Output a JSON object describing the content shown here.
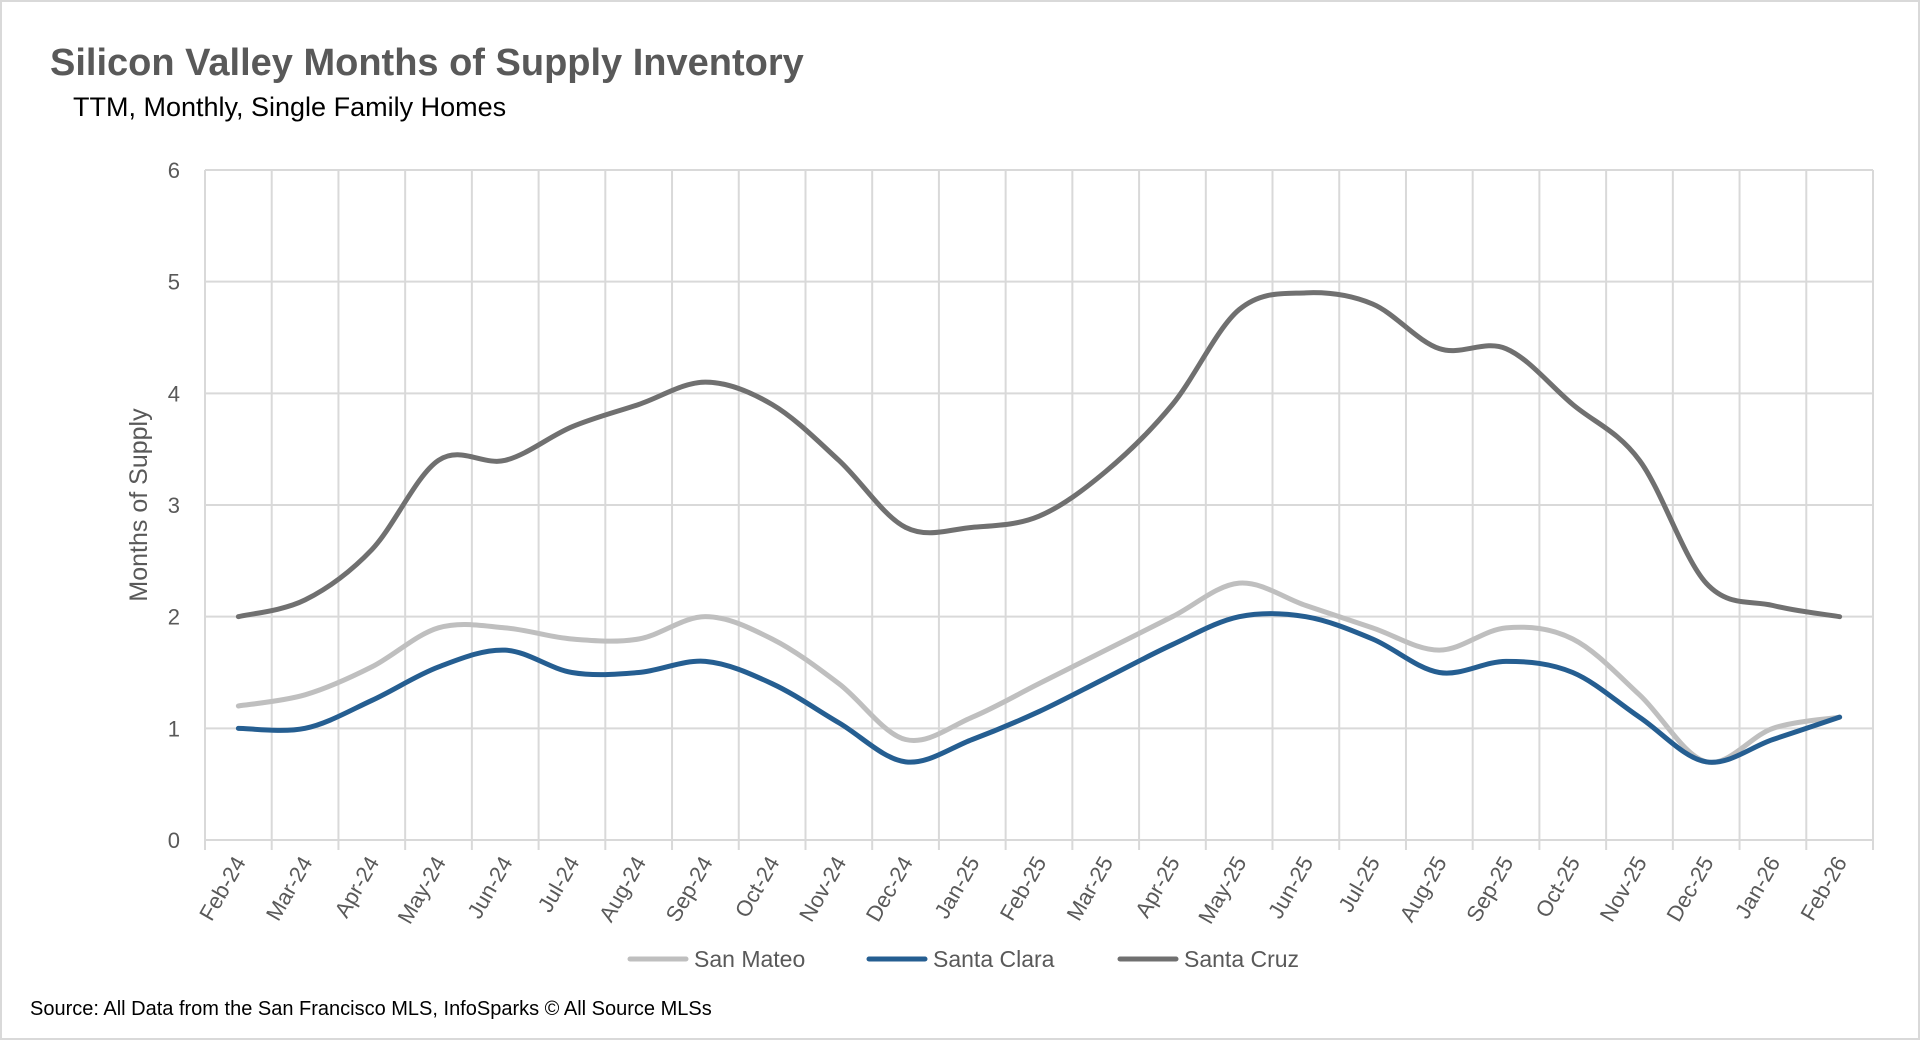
{
  "title": "Silicon Valley Months of Supply Inventory",
  "subtitle": "TTM, Monthly, Single Family Homes",
  "source": "Source: All Data from the San Francisco MLS, InfoSparks © All Source MLSs",
  "chart_data": {
    "type": "line",
    "smoothed": true,
    "title": "Silicon Valley Months of Supply Inventory",
    "subtitle": "TTM, Monthly, Single Family Homes",
    "xlabel": "",
    "ylabel": "Months of Supply",
    "ylim": [
      0,
      6
    ],
    "yticks": [
      "0",
      "1",
      "2",
      "3",
      "4",
      "5",
      "6"
    ],
    "grid": true,
    "legend_position": "bottom",
    "categories": [
      "Feb-24",
      "Mar-24",
      "Apr-24",
      "May-24",
      "Jun-24",
      "Jul-24",
      "Aug-24",
      "Sep-24",
      "Oct-24",
      "Nov-24",
      "Dec-24",
      "Jan-25",
      "Feb-25",
      "Mar-25",
      "Apr-25",
      "May-25",
      "Jun-25",
      "Jul-25",
      "Aug-25",
      "Sep-25",
      "Oct-25",
      "Nov-25",
      "Dec-25",
      "Jan-26",
      "Feb-26"
    ],
    "series": [
      {
        "name": "San Mateo",
        "color": "#bfbfbf",
        "values": [
          1.2,
          1.3,
          1.55,
          1.9,
          1.9,
          1.8,
          1.8,
          2.0,
          1.8,
          1.4,
          0.9,
          1.1,
          1.4,
          1.7,
          2.0,
          2.3,
          2.1,
          1.9,
          1.7,
          1.9,
          1.8,
          1.3,
          0.7,
          1.0,
          1.1
        ]
      },
      {
        "name": "Santa Clara",
        "color": "#255e91",
        "values": [
          1.0,
          1.0,
          1.25,
          1.55,
          1.7,
          1.5,
          1.5,
          1.6,
          1.4,
          1.05,
          0.7,
          0.9,
          1.15,
          1.45,
          1.75,
          2.0,
          2.0,
          1.8,
          1.5,
          1.6,
          1.5,
          1.1,
          0.7,
          0.9,
          1.1
        ]
      },
      {
        "name": "Santa Cruz",
        "color": "#707070",
        "values": [
          2.0,
          2.15,
          2.6,
          3.4,
          3.4,
          3.7,
          3.9,
          4.1,
          3.9,
          3.4,
          2.8,
          2.8,
          2.9,
          3.3,
          3.9,
          4.75,
          4.9,
          4.8,
          4.4,
          4.4,
          3.9,
          3.4,
          2.3,
          2.1,
          2.0
        ]
      }
    ]
  }
}
